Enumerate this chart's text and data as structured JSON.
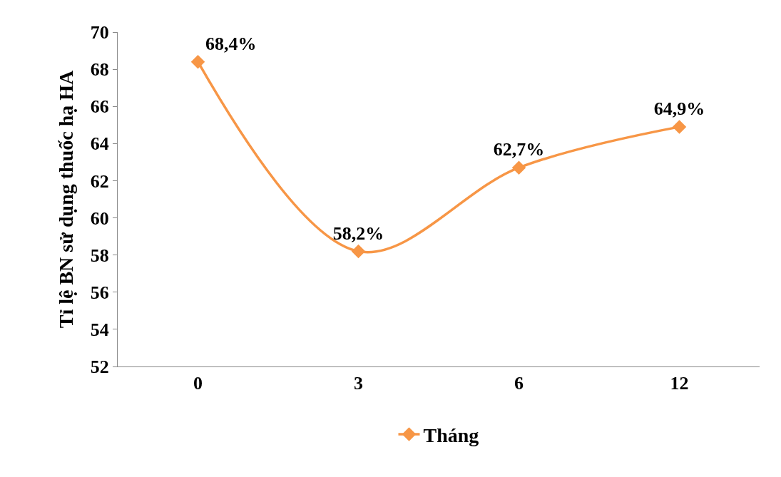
{
  "chart_data": {
    "type": "line",
    "ylabel": "Tỉ lệ BN sử dụng thuốc hạ HA",
    "categories": [
      "0",
      "3",
      "6",
      "12"
    ],
    "series": [
      {
        "name": "Tháng",
        "color": "#f79646",
        "values": [
          68.4,
          58.2,
          62.7,
          64.9
        ],
        "value_labels": [
          "68,4%",
          "58,2%",
          "62,7%",
          "64,9%"
        ]
      }
    ],
    "ylim": [
      52,
      70
    ],
    "yticks": [
      52,
      54,
      56,
      58,
      60,
      62,
      64,
      66,
      68,
      70
    ],
    "grid": false,
    "legend": "bottom",
    "marker": "diamond",
    "line_style": "solid"
  }
}
